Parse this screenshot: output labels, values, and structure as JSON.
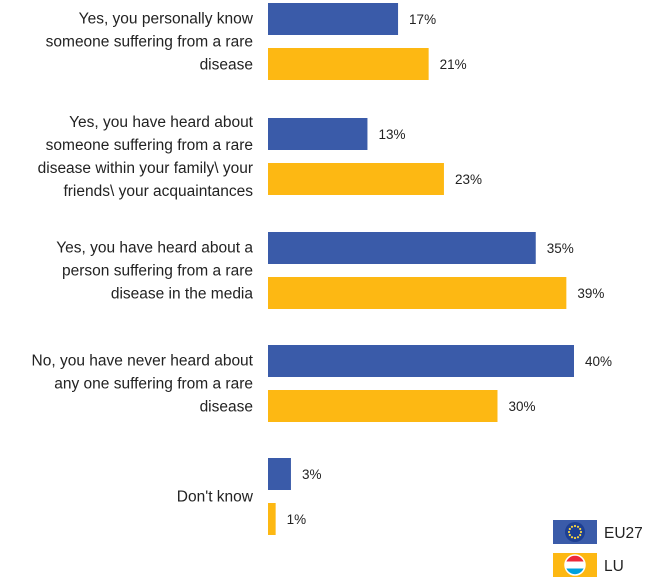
{
  "colors": {
    "eu27": "#3A5BA9",
    "lu": "#FDB813",
    "eu_flag_stars": "#F6D443",
    "lu_flag_red": "#ED2939",
    "lu_flag_white": "#FFFFFF",
    "lu_flag_blue": "#00A1DE"
  },
  "chart_data": {
    "type": "bar",
    "orientation": "horizontal",
    "unit": "%",
    "categories": [
      [
        "Yes, you personally know",
        "someone suffering from a rare",
        "disease"
      ],
      [
        "Yes, you have heard about",
        "someone suffering from a rare",
        "disease within your family\\ your",
        "friends\\ your acquaintances"
      ],
      [
        "Yes, you have heard about a",
        "person suffering from a rare",
        "disease in the media"
      ],
      [
        "No, you have never heard about",
        "any one suffering from a rare",
        "disease"
      ],
      [
        "Don't know"
      ]
    ],
    "series": [
      {
        "name": "EU27",
        "values": [
          17,
          13,
          35,
          40,
          3
        ],
        "icon": "eu-flag-icon"
      },
      {
        "name": "LU",
        "values": [
          21,
          23,
          39,
          30,
          1
        ],
        "icon": "luxembourg-flag-icon"
      }
    ],
    "xlim": [
      0,
      40
    ],
    "legend_position": "bottom-right",
    "grid": false,
    "title": "",
    "xlabel": "",
    "ylabel": ""
  }
}
